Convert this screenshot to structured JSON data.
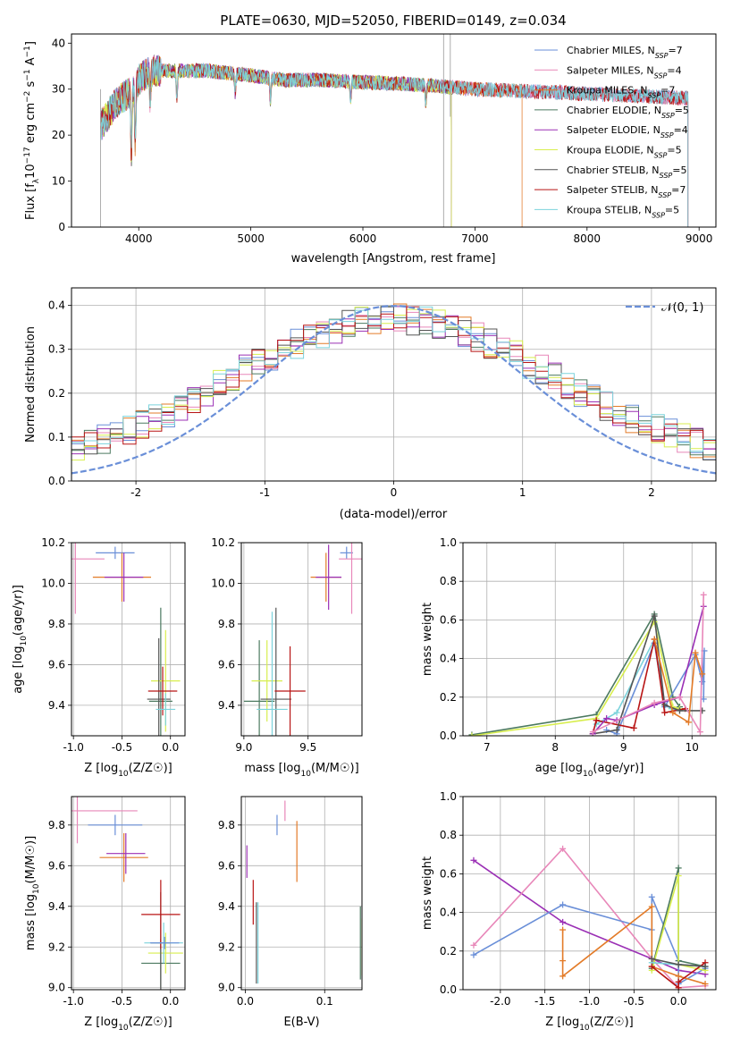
{
  "page_title": "PLATE=0630, MJD=52050, FIBERID=0149, z=0.034",
  "model_colors": [
    "#6a8fd8",
    "#e887b9",
    "#e37b28",
    "#4c7a60",
    "#9b30b5",
    "#d8ee4e",
    "#555555",
    "#b81414",
    "#7bd3dc"
  ],
  "chart_data": [
    {
      "id": "spectrum",
      "type": "line",
      "title": "PLATE=0630, MJD=52050, FIBERID=0149, z=0.034",
      "xlabel": "wavelength [Angstrom, rest frame]",
      "ylabel": "Flux [f_λ10⁻¹⁷ erg cm⁻² s⁻¹ A⁻¹]",
      "xlim": [
        3400,
        9150
      ],
      "ylim": [
        0,
        42
      ],
      "xticks": [
        4000,
        5000,
        6000,
        7000,
        8000,
        9000
      ],
      "yticks": [
        0,
        10,
        20,
        30,
        40
      ],
      "legend_position": "upper-right",
      "series": [
        {
          "name": "Chabrier MILES, N_SSP=7",
          "label": "Chabrier MILES, N",
          "sub": "SSP",
          "suffix": "=7"
        },
        {
          "name": "Salpeter MILES, N_SSP=4",
          "label": "Salpeter MILES, N",
          "sub": "SSP",
          "suffix": "=4"
        },
        {
          "name": "Kroupa MILES, N_SSP=7",
          "label": "Kroupa MILES, N",
          "sub": "SSP",
          "suffix": "=7"
        },
        {
          "name": "Chabrier ELODIE, N_SSP=5",
          "label": "Chabrier ELODIE, N",
          "sub": "SSP",
          "suffix": "=5"
        },
        {
          "name": "Salpeter ELODIE, N_SSP=4",
          "label": "Salpeter ELODIE, N",
          "sub": "SSP",
          "suffix": "=4"
        },
        {
          "name": "Kroupa ELODIE, N_SSP=5",
          "label": "Kroupa ELODIE, N",
          "sub": "SSP",
          "suffix": "=5"
        },
        {
          "name": "Chabrier STELIB, N_SSP=5",
          "label": "Chabrier STELIB, N",
          "sub": "SSP",
          "suffix": "=5"
        },
        {
          "name": "Salpeter STELIB, N_SSP=7",
          "label": "Salpeter STELIB, N",
          "sub": "SSP",
          "suffix": "=7"
        },
        {
          "name": "Kroupa STELIB, N_SSP=5",
          "label": "Kroupa STELIB, N",
          "sub": "SSP",
          "suffix": "=5"
        }
      ],
      "model_ranges": [
        [
          3660,
          8900
        ],
        [
          3660,
          8900
        ],
        [
          3660,
          7420
        ],
        [
          3660,
          6790
        ],
        [
          3660,
          6790
        ],
        [
          3660,
          6790
        ],
        [
          3660,
          8900
        ],
        [
          3660,
          8900
        ],
        [
          3660,
          8900
        ]
      ],
      "continuum": {
        "x": [
          3660,
          3800,
          3950,
          4000,
          4100,
          4300,
          4600,
          5000,
          5300,
          5600,
          6000,
          6500,
          7000,
          7500,
          8000,
          8500,
          8900
        ],
        "y": [
          22,
          27,
          30,
          32,
          34,
          34,
          34,
          33,
          32,
          32,
          31.5,
          31,
          30,
          29.5,
          29,
          28.5,
          28
        ]
      }
    },
    {
      "id": "residuals",
      "type": "histogram",
      "xlabel": "(data-model)/error",
      "ylabel": "Normed distribution",
      "xlim": [
        -2.5,
        2.5
      ],
      "ylim": [
        0,
        0.44
      ],
      "xticks": [
        -2,
        -1,
        0,
        1,
        2
      ],
      "yticks": [
        0.0,
        0.1,
        0.2,
        0.3,
        0.4
      ],
      "bin_width": 0.1,
      "reference_label": "N(0,1)",
      "reference_label_display": "𝒩(0, 1)",
      "legend_position": "upper-right"
    },
    {
      "id": "z-vs-age",
      "type": "errorbar",
      "xlabel": "Z [log10(Z/Z☉)]",
      "xlabel_base": "Z [log",
      "xlabel_sub": "10",
      "xlabel_rest": "(Z/Z☉)]",
      "ylabel": "age [log10(age/yr)]",
      "ylabel_base": "age  [log",
      "ylabel_sub": "10",
      "ylabel_rest": "(age/yr)]",
      "xlim": [
        -1.02,
        0.15
      ],
      "ylim": [
        9.25,
        10.2
      ],
      "xticks": [
        -1.0,
        -0.5,
        0.0
      ],
      "yticks": [
        9.4,
        9.6,
        9.8,
        10.0,
        10.2
      ],
      "points": [
        {
          "x": -0.57,
          "xerr": 0.2,
          "y": 10.15,
          "yerr": 0.03,
          "c": 0
        },
        {
          "x": -0.98,
          "xerr": 0.3,
          "y": 10.12,
          "yerr": 0.27,
          "c": 1
        },
        {
          "x": -0.5,
          "xerr": 0.3,
          "y": 10.03,
          "yerr": 0.12,
          "c": 2
        },
        {
          "x": -0.48,
          "xerr": 0.2,
          "y": 10.03,
          "yerr": 0.12,
          "c": 4
        },
        {
          "x": -0.1,
          "xerr": 0.12,
          "y": 9.42,
          "yerr": 0.46,
          "c": 3
        },
        {
          "x": -0.05,
          "xerr": 0.15,
          "y": 9.52,
          "yerr": 0.25,
          "c": 5
        },
        {
          "x": -0.12,
          "xerr": 0.12,
          "y": 9.43,
          "yerr": 0.3,
          "c": 6
        },
        {
          "x": -0.08,
          "xerr": 0.15,
          "y": 9.47,
          "yerr": 0.12,
          "c": 7
        },
        {
          "x": -0.05,
          "xerr": 0.1,
          "y": 9.38,
          "yerr": 0.08,
          "c": 8
        }
      ]
    },
    {
      "id": "mass-vs-age",
      "type": "errorbar",
      "xlabel": "mass [log10(M/M☉)]",
      "xlabel_base": "mass [log",
      "xlabel_sub": "10",
      "xlabel_rest": "(M/M☉)]",
      "ylabel": "",
      "xlim": [
        8.98,
        9.92
      ],
      "ylim": [
        9.25,
        10.2
      ],
      "xticks": [
        9.0,
        9.5
      ],
      "yticks": [
        9.4,
        9.6,
        9.8,
        10.0,
        10.2
      ],
      "points": [
        {
          "x": 9.8,
          "xerr": 0.05,
          "y": 10.15,
          "yerr": 0.03,
          "c": 0
        },
        {
          "x": 9.84,
          "xerr": 0.1,
          "y": 10.12,
          "yerr": 0.27,
          "c": 1
        },
        {
          "x": 9.64,
          "xerr": 0.12,
          "y": 10.03,
          "yerr": 0.12,
          "c": 2
        },
        {
          "x": 9.66,
          "xerr": 0.1,
          "y": 10.03,
          "yerr": 0.16,
          "c": 4
        },
        {
          "x": 9.12,
          "xerr": 0.12,
          "y": 9.42,
          "yerr": 0.3,
          "c": 3
        },
        {
          "x": 9.18,
          "xerr": 0.12,
          "y": 9.52,
          "yerr": 0.2,
          "c": 5
        },
        {
          "x": 9.25,
          "xerr": 0.12,
          "y": 9.43,
          "yerr": 0.45,
          "c": 6
        },
        {
          "x": 9.36,
          "xerr": 0.12,
          "y": 9.47,
          "yerr": 0.22,
          "c": 7
        },
        {
          "x": 9.22,
          "xerr": 0.12,
          "y": 9.38,
          "yerr": 0.48,
          "c": 8
        }
      ]
    },
    {
      "id": "age-weights",
      "type": "line",
      "xlabel": "age  [log10(age/yr)]",
      "xlabel_base": "age  [log",
      "xlabel_sub": "10",
      "xlabel_rest": "(age/yr)]",
      "ylabel": "mass weight",
      "xlim": [
        6.65,
        10.35
      ],
      "ylim": [
        0,
        1
      ],
      "xticks": [
        7,
        8,
        9,
        10
      ],
      "yticks": [
        0.0,
        0.2,
        0.4,
        0.6,
        0.8,
        1.0
      ],
      "series": [
        {
          "c": 3,
          "x": [
            6.78,
            8.6,
            9.45,
            9.72,
            9.82
          ],
          "y": [
            0.005,
            0.11,
            0.63,
            0.2,
            0.15
          ]
        },
        {
          "c": 5,
          "x": [
            6.78,
            8.6,
            9.45,
            9.72,
            9.82
          ],
          "y": [
            0.0,
            0.09,
            0.59,
            0.15,
            0.14
          ]
        },
        {
          "c": 8,
          "x": [
            8.6,
            8.9,
            9.45,
            9.6,
            9.7,
            9.82
          ],
          "y": [
            0.06,
            0.12,
            0.5,
            0.16,
            0.14,
            0.13
          ]
        },
        {
          "c": 0,
          "x": [
            8.75,
            8.9,
            9.45,
            9.6,
            10.05,
            10.15,
            10.18,
            10.17
          ],
          "y": [
            0.03,
            0.01,
            0.48,
            0.15,
            0.42,
            0.28,
            0.44,
            0.19
          ]
        },
        {
          "c": 7,
          "x": [
            8.55,
            8.6,
            9.15,
            9.45,
            9.6,
            9.9
          ],
          "y": [
            0.01,
            0.08,
            0.04,
            0.5,
            0.12,
            0.14
          ]
        },
        {
          "c": 6,
          "x": [
            8.55,
            8.9,
            9.45,
            9.6,
            9.82,
            10.15
          ],
          "y": [
            0.01,
            0.03,
            0.62,
            0.16,
            0.13,
            0.13
          ]
        },
        {
          "c": 4,
          "x": [
            8.55,
            8.75,
            8.9,
            9.45,
            9.82,
            10.17
          ],
          "y": [
            0.01,
            0.09,
            0.08,
            0.16,
            0.2,
            0.67
          ]
        },
        {
          "c": 1,
          "x": [
            8.55,
            9.45,
            9.82,
            10.12,
            10.17
          ],
          "y": [
            0.02,
            0.17,
            0.2,
            0.02,
            0.73
          ]
        },
        {
          "c": 2,
          "x": [
            9.45,
            9.72,
            9.95,
            10.05,
            10.15
          ],
          "y": [
            0.5,
            0.12,
            0.07,
            0.43,
            0.32
          ]
        }
      ]
    },
    {
      "id": "z-vs-mass",
      "type": "errorbar",
      "xlabel": "Z [log10(Z/Z☉)]",
      "xlabel_base": "Z [log",
      "xlabel_sub": "10",
      "xlabel_rest": "(Z/Z☉)]",
      "ylabel": "mass [log10(M/M☉)]",
      "ylabel_base": "mass [log",
      "ylabel_sub": "10",
      "ylabel_rest": "(M/M☉)]",
      "xlim": [
        -1.02,
        0.15
      ],
      "ylim": [
        8.99,
        9.94
      ],
      "xticks": [
        -1.0,
        -0.5,
        0.0
      ],
      "yticks": [
        9.0,
        9.2,
        9.4,
        9.6,
        9.8
      ],
      "points": [
        {
          "x": -0.57,
          "xerr": 0.28,
          "y": 9.8,
          "yerr": 0.05,
          "c": 0
        },
        {
          "x": -0.96,
          "xerr": 0.62,
          "y": 9.87,
          "yerr": 0.16,
          "c": 1
        },
        {
          "x": -0.48,
          "xerr": 0.25,
          "y": 9.64,
          "yerr": 0.12,
          "c": 2
        },
        {
          "x": -0.46,
          "xerr": 0.2,
          "y": 9.66,
          "yerr": 0.1,
          "c": 4
        },
        {
          "x": -0.1,
          "xerr": 0.2,
          "y": 9.12,
          "yerr": 0.12,
          "c": 3
        },
        {
          "x": -0.05,
          "xerr": 0.18,
          "y": 9.17,
          "yerr": 0.1,
          "c": 5
        },
        {
          "x": -0.1,
          "xerr": 0.1,
          "y": 9.22,
          "yerr": 0.25,
          "c": 6
        },
        {
          "x": -0.1,
          "xerr": 0.2,
          "y": 9.36,
          "yerr": 0.17,
          "c": 7
        },
        {
          "x": -0.07,
          "xerr": 0.2,
          "y": 9.22,
          "yerr": 0.1,
          "c": 8
        },
        {
          "x": -0.06,
          "xerr": 0.15,
          "y": 9.22,
          "yerr": 0.03,
          "c": 0
        }
      ]
    },
    {
      "id": "ebv-vs-mass",
      "type": "errorbar",
      "xlabel": "E(B-V)",
      "ylabel": "",
      "xlim": [
        -0.005,
        0.147
      ],
      "ylim": [
        8.99,
        9.94
      ],
      "xticks": [
        0.0,
        0.1
      ],
      "yticks": [
        9.0,
        9.2,
        9.4,
        9.6,
        9.8
      ],
      "points": [
        {
          "x": 0.04,
          "xerr": 0,
          "y": 9.8,
          "yerr": 0.05,
          "c": 0
        },
        {
          "x": 0.05,
          "xerr": 0,
          "y": 9.87,
          "yerr": 0.05,
          "c": 1
        },
        {
          "x": 0.065,
          "xerr": 0,
          "y": 9.67,
          "yerr": 0.15,
          "c": 2
        },
        {
          "x": 0.002,
          "xerr": 0,
          "y": 9.62,
          "yerr": 0.08,
          "c": 4
        },
        {
          "x": 0.01,
          "xerr": 0,
          "y": 9.42,
          "yerr": 0.11,
          "c": 7
        },
        {
          "x": 0.014,
          "xerr": 0,
          "y": 9.22,
          "yerr": 0.2,
          "c": 6
        },
        {
          "x": 0.016,
          "xerr": 0,
          "y": 9.22,
          "yerr": 0.2,
          "c": 8
        },
        {
          "x": 0.145,
          "xerr": 0,
          "y": 9.22,
          "yerr": 0.18,
          "c": 3
        },
        {
          "x": 0.147,
          "xerr": 0,
          "y": 9.2,
          "yerr": 0.14,
          "c": 5
        }
      ]
    },
    {
      "id": "z-weights",
      "type": "line",
      "xlabel": "Z [log10(Z/Z☉)]",
      "xlabel_base": "Z [log",
      "xlabel_sub": "10",
      "xlabel_rest": "(Z/Z☉)]",
      "ylabel": "mass weight",
      "xlim": [
        -2.42,
        0.42
      ],
      "ylim": [
        0,
        1
      ],
      "xticks": [
        -2.0,
        -1.5,
        -1.0,
        -0.5,
        0.0
      ],
      "yticks": [
        0.0,
        0.2,
        0.4,
        0.6,
        0.8,
        1.0
      ],
      "series": [
        {
          "c": 4,
          "x": [
            -2.3,
            -1.3,
            -0.3,
            0.0,
            0.3
          ],
          "y": [
            0.67,
            0.35,
            0.16,
            0.1,
            0.08
          ]
        },
        {
          "c": 1,
          "x": [
            -2.3,
            -1.3,
            -0.3,
            0.0,
            0.3
          ],
          "y": [
            0.23,
            0.73,
            0.16,
            0.01,
            0.02
          ]
        },
        {
          "c": 0,
          "x": [
            -2.3,
            -1.3,
            -0.3,
            -0.3,
            0.0,
            0.0,
            0.3
          ],
          "y": [
            0.18,
            0.44,
            0.31,
            0.48,
            0.15,
            0.03,
            0.11
          ]
        },
        {
          "c": 2,
          "x": [
            -1.3,
            -1.3,
            -1.3,
            -0.3,
            -0.3,
            0.0,
            0.3
          ],
          "y": [
            0.31,
            0.15,
            0.07,
            0.43,
            0.12,
            0.07,
            0.03
          ]
        },
        {
          "c": 3,
          "x": [
            -0.3,
            0.0,
            0.0,
            0.3
          ],
          "y": [
            0.11,
            0.63,
            0.15,
            0.12
          ]
        },
        {
          "c": 5,
          "x": [
            -0.3,
            0.0,
            0.0,
            0.3
          ],
          "y": [
            0.1,
            0.59,
            0.13,
            0.1
          ]
        },
        {
          "c": 8,
          "x": [
            -0.3,
            0.0,
            0.3
          ],
          "y": [
            0.14,
            0.13,
            0.12
          ]
        },
        {
          "c": 7,
          "x": [
            -0.3,
            0.0,
            0.0,
            0.3
          ],
          "y": [
            0.12,
            0.01,
            0.04,
            0.14
          ]
        },
        {
          "c": 6,
          "x": [
            -0.3,
            0.0,
            0.3
          ],
          "y": [
            0.16,
            0.13,
            0.12
          ]
        }
      ]
    }
  ]
}
